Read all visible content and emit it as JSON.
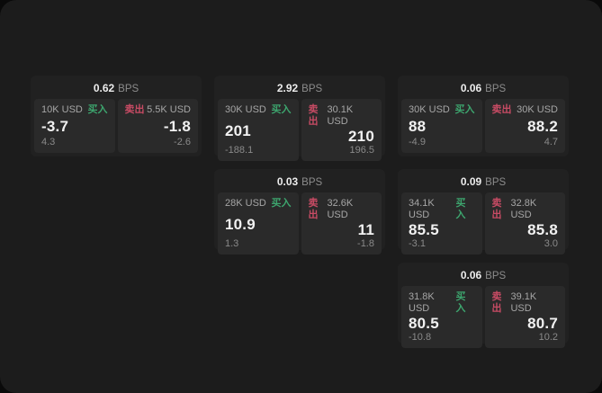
{
  "labels": {
    "bps_unit": "BPS",
    "buy": "买入",
    "sell": "卖出"
  },
  "colors": {
    "page_background": "#1c1c1c",
    "card_background": "#212121",
    "panel_background": "#2a2a2a",
    "buy_accent": "#3da56e",
    "sell_accent": "#c74b64"
  },
  "cards": [
    {
      "bps": "0.62",
      "buy": {
        "size": "10K USD",
        "value": "-3.7",
        "sub": "4.3"
      },
      "sell": {
        "size": "5.5K USD",
        "value": "-1.8",
        "sub": "-2.6"
      }
    },
    {
      "bps": "2.92",
      "buy": {
        "size": "30K USD",
        "value": "201",
        "sub": "-188.1"
      },
      "sell": {
        "size": "30.1K USD",
        "value": "210",
        "sub": "196.5"
      }
    },
    {
      "bps": "0.06",
      "buy": {
        "size": "30K USD",
        "value": "88",
        "sub": "-4.9"
      },
      "sell": {
        "size": "30K USD",
        "value": "88.2",
        "sub": "4.7"
      }
    },
    {
      "bps": "0.03",
      "buy": {
        "size": "28K USD",
        "value": "10.9",
        "sub": "1.3"
      },
      "sell": {
        "size": "32.6K USD",
        "value": "11",
        "sub": "-1.8"
      }
    },
    {
      "bps": "0.09",
      "buy": {
        "size": "34.1K USD",
        "value": "85.5",
        "sub": "-3.1"
      },
      "sell": {
        "size": "32.8K USD",
        "value": "85.8",
        "sub": "3.0"
      }
    },
    {
      "bps": "0.06",
      "buy": {
        "size": "31.8K USD",
        "value": "80.5",
        "sub": "-10.8"
      },
      "sell": {
        "size": "39.1K USD",
        "value": "80.7",
        "sub": "10.2"
      }
    }
  ]
}
